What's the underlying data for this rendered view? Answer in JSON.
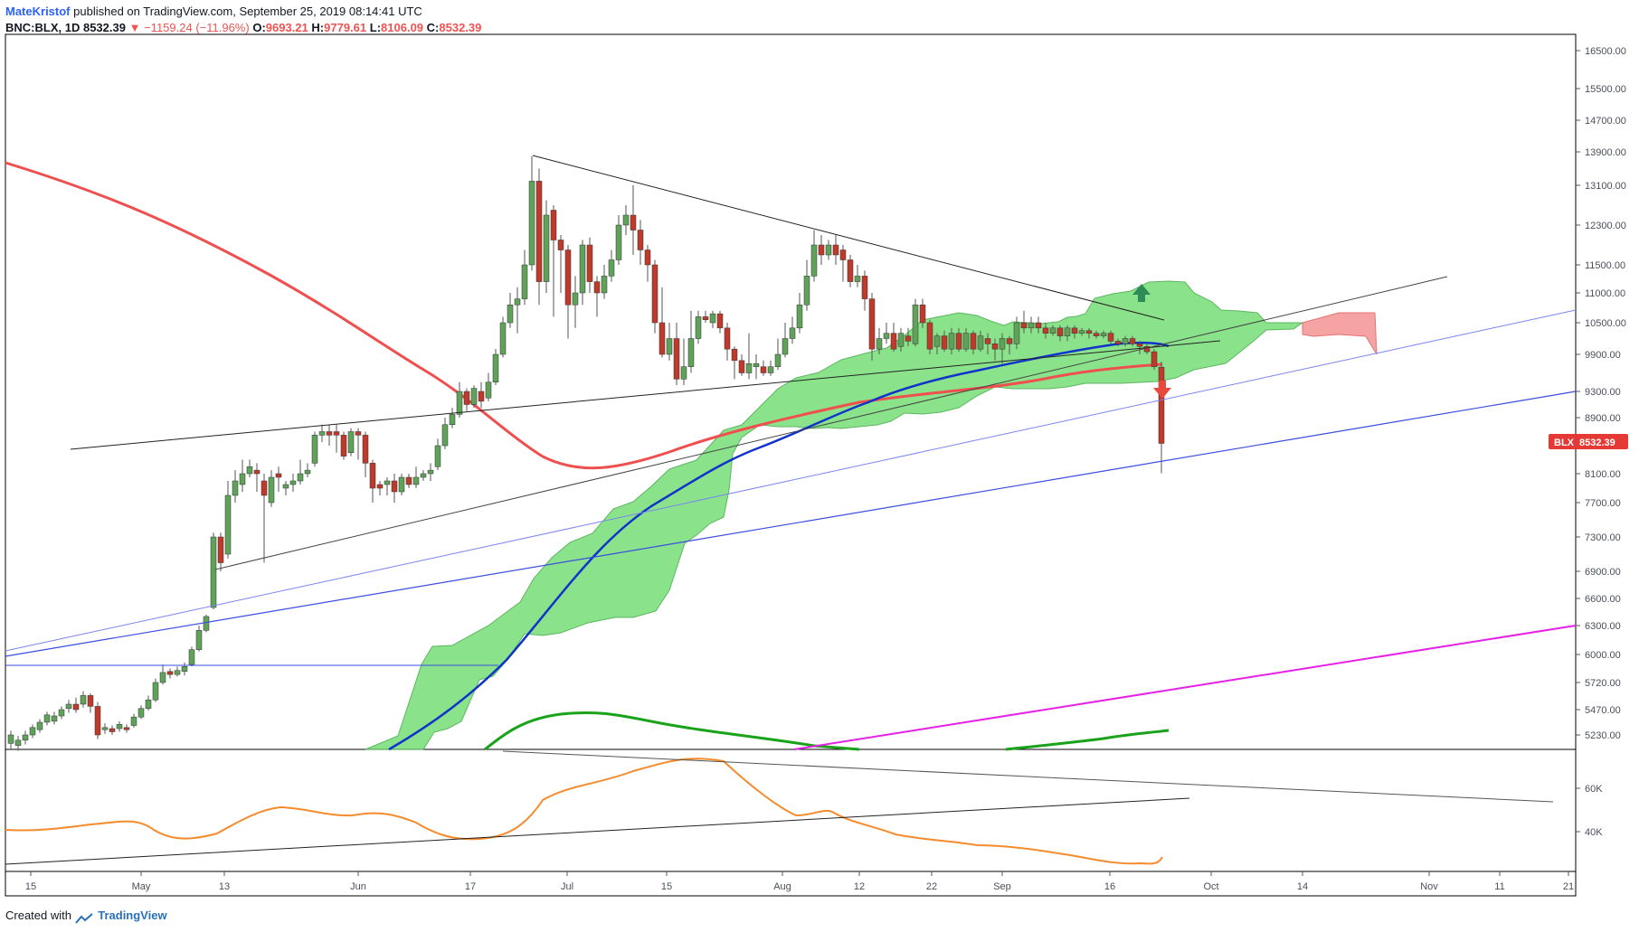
{
  "header": {
    "author": "MateKristof",
    "published": "published on TradingView.com, September 25, 2019 08:14:41 UTC",
    "symbol": "BNC:BLX, 1D",
    "last": "8532.39",
    "arrow": "▼",
    "change": "−1159.24 (−11.96%)",
    "o_label": "O:",
    "o_value": "9693.21",
    "h_label": "H:",
    "h_value": "9779.61",
    "l_label": "L:",
    "l_value": "8106.09",
    "c_label": "C:",
    "c_value": "8532.39"
  },
  "footer": {
    "created_with": "Created with",
    "brand": "TradingView"
  },
  "colors": {
    "up": "#26a69a",
    "up_body": "#5fa35a",
    "down": "#c0392b",
    "kumo_fill": "#7ee07e",
    "kumo_red": "#f5a3a3",
    "ma_red": "#ef4f4f",
    "ma_blue": "#1033cc",
    "ma_green": "#1aa31a",
    "magenta": "#e621e6",
    "oscillator": "#f58b2c",
    "trend": "#222222",
    "channel": "#3b4de0",
    "price_badge": "#e53935"
  },
  "chart_data": {
    "type": "candlestick",
    "symbol": "BNC:BLX",
    "timeframe": "1D",
    "price_scale": {
      "ticks": [
        "16500.00",
        "15500.00",
        "14700.00",
        "13900.00",
        "13100.00",
        "12300.00",
        "11500.00",
        "11000.00",
        "10500.00",
        "9900.00",
        "9300.00",
        "8900.00",
        "8100.00",
        "7700.00",
        "7300.00",
        "6900.00",
        "6600.00",
        "6300.00",
        "6000.00",
        "5720.00",
        "5470.00",
        "5230.00"
      ]
    },
    "time_scale": [
      "15",
      "May",
      "13",
      "Jun",
      "17",
      "Jul",
      "15",
      "Aug",
      "12",
      "22",
      "Sep",
      "16",
      "Oct",
      "14",
      "Nov",
      "11",
      "21"
    ],
    "last_price_label": "BLX",
    "last_price": "8532.39",
    "oscillator_scale": [
      "60K",
      "40K"
    ],
    "candles_sample": [
      {
        "date": "Apr 15",
        "o": 5050,
        "c": 5080
      },
      {
        "date": "May 13",
        "o": 7200,
        "c": 7900
      },
      {
        "date": "Jun 26",
        "o": 11800,
        "c": 13200
      },
      {
        "date": "Aug 6",
        "o": 11400,
        "c": 11900
      },
      {
        "date": "Sep 24",
        "o": 9693.21,
        "h": 9779.61,
        "l": 8106.09,
        "c": 8532.39
      }
    ],
    "annotations": [
      "triangle upper trendline",
      "triangle lower trendline",
      "ascending channel lines",
      "up arrow",
      "down arrow"
    ]
  }
}
